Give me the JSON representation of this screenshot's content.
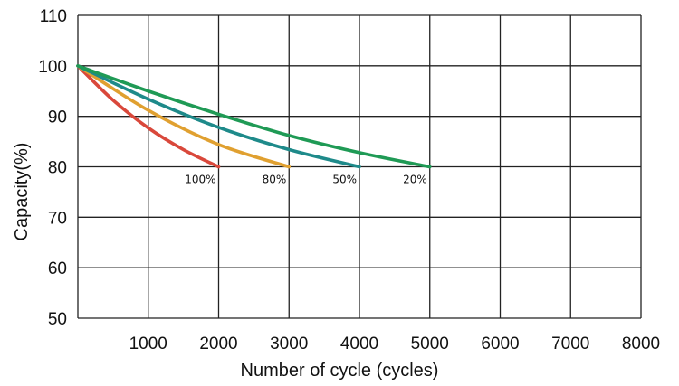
{
  "chart_data": {
    "type": "line",
    "title": "",
    "xlabel": "Number of cycle (cycles)",
    "ylabel": "Capacity(%)",
    "xlim": [
      0,
      8000
    ],
    "ylim": [
      50,
      110
    ],
    "x_ticks": [
      "1000",
      "2000",
      "3000",
      "4000",
      "5000",
      "6000",
      "7000",
      "8000"
    ],
    "y_ticks": [
      "50",
      "60",
      "70",
      "80",
      "90",
      "100",
      "110"
    ],
    "grid": true,
    "series": [
      {
        "name": "100%",
        "color": "#d9483b",
        "x": [
          0,
          500,
          1000,
          1500,
          2000
        ],
        "y": [
          100,
          93.2,
          87.7,
          83.4,
          80
        ]
      },
      {
        "name": "80%",
        "color": "#e0a030",
        "x": [
          0,
          1000,
          2000,
          3000
        ],
        "y": [
          100,
          91.2,
          84.4,
          80
        ]
      },
      {
        "name": "50%",
        "color": "#1e8a8a",
        "x": [
          0,
          1000,
          2000,
          3000,
          4000
        ],
        "y": [
          100,
          93.4,
          87.8,
          83.4,
          80
        ]
      },
      {
        "name": "20%",
        "color": "#1f9a55",
        "x": [
          0,
          1000,
          2000,
          3000,
          4000,
          5000
        ],
        "y": [
          100,
          95,
          90.4,
          86.2,
          82.8,
          80
        ]
      }
    ]
  }
}
